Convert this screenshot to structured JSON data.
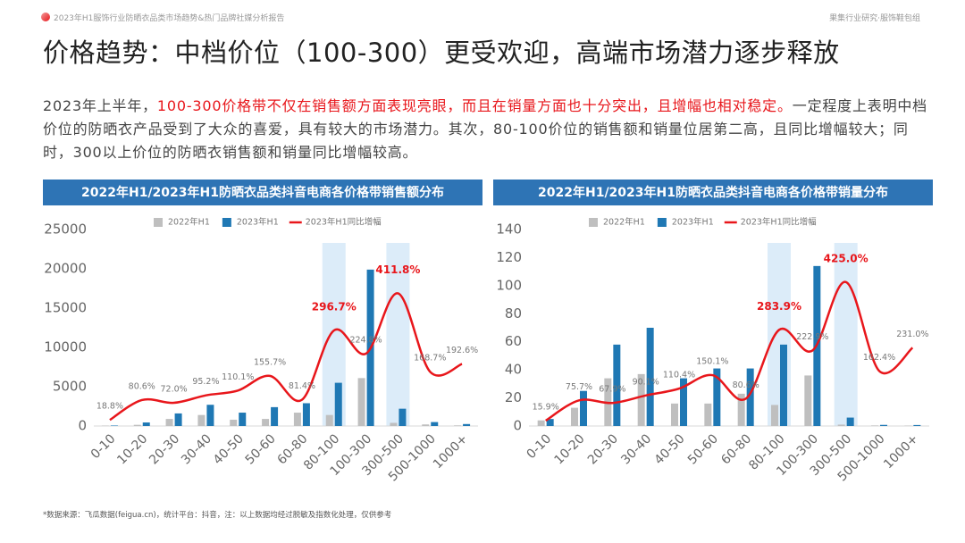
{
  "header": {
    "report": "2023年H1服饰行业防晒衣品类市场趋势&热门品牌社媒分析报告",
    "brand": "果集行业研究·服饰鞋包组"
  },
  "title": "价格趋势：中档价位（100-300）更受欢迎，高端市场潜力逐步释放",
  "paragraph": [
    "2023年上半年，",
    "100-300价格带不仅在销售额方面表现亮眼，而且在销量方面也十分突出，且增幅也相对稳定。",
    "一定程度上表明中档价位的防晒衣产品受到了大众的喜爱，具有较大的市场潜力。其次，80-100价位的销售额和销量位居第二高，且同比增幅较大；同时，300以上价位的防晒衣销售额和销量同比增幅较高。"
  ],
  "footnote": "*数据来源：飞瓜数据(feigua.cn)，统计平台：抖音，注：以上数据均经过脱敏及指数化处理，仅供参考",
  "chart_data": [
    {
      "type": "bar",
      "title": "2022年H1/2023年H1防晒衣品类抖音电商各价格带销售额分布",
      "categories": [
        "0-10",
        "10-20",
        "20-30",
        "30-40",
        "40-50",
        "50-60",
        "60-80",
        "80-100",
        "100-300",
        "300-500",
        "500-1000",
        "1000+"
      ],
      "series": [
        {
          "name": "2022年H1",
          "color": "#bfbfbf",
          "values": [
            50,
            150,
            900,
            1400,
            800,
            900,
            1700,
            1400,
            6100,
            400,
            200,
            80
          ]
        },
        {
          "name": "2023年H1",
          "color": "#1f78b4",
          "values": [
            60,
            450,
            1600,
            2700,
            1700,
            2400,
            2900,
            5500,
            19900,
            2200,
            500,
            250
          ]
        },
        {
          "name": "2023年H1同比增幅",
          "color": "#e8161b",
          "type": "line",
          "axis": "y2",
          "values": [
            18.8,
            80.6,
            72.0,
            95.2,
            110.1,
            155.7,
            81.4,
            296.7,
            224.8,
            411.8,
            168.7,
            192.6
          ],
          "value_labels": [
            "18.8%",
            "80.6%",
            "72.0%",
            "95.2%",
            "110.1%",
            "155.7%",
            "81.4%",
            "296.7%",
            "224.8%",
            "411.8%",
            "168.7%",
            "192.6%"
          ]
        }
      ],
      "ylim": [
        0,
        25000
      ],
      "yticks": [
        0,
        5000,
        10000,
        15000,
        20000,
        25000
      ],
      "y2lim": [
        0,
        610
      ],
      "highlight": [
        7,
        9
      ],
      "legend": "top"
    },
    {
      "type": "bar",
      "title": "2022年H1/2023年H1防晒衣品类抖音电商各价格带销量分布",
      "categories": [
        "0-10",
        "10-20",
        "20-30",
        "30-40",
        "40-50",
        "50-60",
        "60-80",
        "80-100",
        "100-300",
        "300-500",
        "500-1000",
        "1000+"
      ],
      "series": [
        {
          "name": "2022年H1",
          "color": "#bfbfbf",
          "values": [
            4,
            13,
            34,
            37,
            16,
            16,
            23,
            15,
            36,
            1,
            0.4,
            0.3
          ]
        },
        {
          "name": "2023年H1",
          "color": "#1f78b4",
          "values": [
            5,
            25,
            58,
            70,
            34,
            41,
            41,
            58,
            114,
            6,
            0.8,
            0.7
          ]
        },
        {
          "name": "2023年H1同比增幅",
          "color": "#e8161b",
          "type": "line",
          "axis": "y2",
          "values": [
            15.9,
            75.7,
            67.9,
            90.1,
            110.4,
            150.1,
            80.6,
            283.9,
            222.9,
            425.0,
            162.4,
            231.0
          ],
          "value_labels": [
            "15.9%",
            "75.7%",
            "67.9%",
            "90.1%",
            "110.4%",
            "150.1%",
            "80.6%",
            "283.9%",
            "222.9%",
            "425.0%",
            "162.4%",
            "231.0%"
          ]
        }
      ],
      "ylim": [
        0,
        140
      ],
      "yticks": [
        0,
        20,
        40,
        60,
        80,
        100,
        120,
        140
      ],
      "y2lim": [
        0,
        580
      ],
      "highlight": [
        7,
        9
      ],
      "legend": "top"
    }
  ]
}
